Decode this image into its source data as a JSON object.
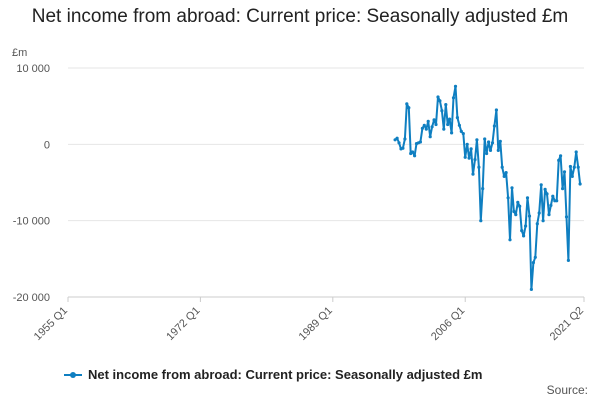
{
  "chart_data": {
    "type": "line",
    "title": "Net income from abroad: Current price: Seasonally adjusted £m",
    "unit_label": "£m",
    "ylim": [
      -20000,
      10000
    ],
    "y_ticks": [
      {
        "value": 10000,
        "label": "10 000"
      },
      {
        "value": 0,
        "label": "0"
      },
      {
        "value": -10000,
        "label": "-10 000"
      },
      {
        "value": -20000,
        "label": "-20 000"
      }
    ],
    "xlim": [
      "1955 Q1",
      "2021 Q2"
    ],
    "x_ticks": [
      "1955 Q1",
      "1972 Q1",
      "1989 Q1",
      "2006 Q1",
      "2021 Q2"
    ],
    "grid": true,
    "legend_position": "bottom-left",
    "colors": {
      "series": "#0f7fc1",
      "grid": "#e6e6e6",
      "axis": "#cccccc",
      "tick_text": "#555555"
    },
    "series": [
      {
        "name": "Net income from abroad: Current price: Seasonally adjusted £m",
        "points": [
          [
            "1997 Q1",
            600
          ],
          [
            "1997 Q2",
            800
          ],
          [
            "1997 Q3",
            200
          ],
          [
            "1997 Q4",
            -600
          ],
          [
            "1998 Q1",
            -500
          ],
          [
            "1998 Q2",
            700
          ],
          [
            "1998 Q3",
            5300
          ],
          [
            "1998 Q4",
            4800
          ],
          [
            "1999 Q1",
            -1200
          ],
          [
            "1999 Q2",
            -1000
          ],
          [
            "1999 Q3",
            -1500
          ],
          [
            "1999 Q4",
            100
          ],
          [
            "2000 Q1",
            200
          ],
          [
            "2000 Q2",
            300
          ],
          [
            "2000 Q3",
            2100
          ],
          [
            "2000 Q4",
            2500
          ],
          [
            "2001 Q1",
            2000
          ],
          [
            "2001 Q2",
            3000
          ],
          [
            "2001 Q3",
            1000
          ],
          [
            "2001 Q4",
            2300
          ],
          [
            "2002 Q1",
            3200
          ],
          [
            "2002 Q2",
            2600
          ],
          [
            "2002 Q3",
            6200
          ],
          [
            "2002 Q4",
            5700
          ],
          [
            "2003 Q1",
            4400
          ],
          [
            "2003 Q2",
            2000
          ],
          [
            "2003 Q3",
            5200
          ],
          [
            "2003 Q4",
            2600
          ],
          [
            "2004 Q1",
            3300
          ],
          [
            "2004 Q2",
            1500
          ],
          [
            "2004 Q3",
            6100
          ],
          [
            "2004 Q4",
            7600
          ],
          [
            "2005 Q1",
            3500
          ],
          [
            "2005 Q2",
            2500
          ],
          [
            "2005 Q3",
            1700
          ],
          [
            "2005 Q4",
            1400
          ],
          [
            "2006 Q1",
            -1700
          ],
          [
            "2006 Q2",
            0
          ],
          [
            "2006 Q3",
            -1800
          ],
          [
            "2006 Q4",
            -600
          ],
          [
            "2007 Q1",
            -3900
          ],
          [
            "2007 Q2",
            -2000
          ],
          [
            "2007 Q3",
            600
          ],
          [
            "2007 Q4",
            -3000
          ],
          [
            "2008 Q1",
            -10000
          ],
          [
            "2008 Q2",
            -5800
          ],
          [
            "2008 Q3",
            700
          ],
          [
            "2008 Q4",
            -1200
          ],
          [
            "2009 Q1",
            300
          ],
          [
            "2009 Q2",
            -800
          ],
          [
            "2009 Q3",
            200
          ],
          [
            "2009 Q4",
            2400
          ],
          [
            "2010 Q1",
            4500
          ],
          [
            "2010 Q2",
            -800
          ],
          [
            "2010 Q3",
            400
          ],
          [
            "2010 Q4",
            -3000
          ],
          [
            "2011 Q1",
            -4200
          ],
          [
            "2011 Q2",
            -3700
          ],
          [
            "2011 Q3",
            -7000
          ],
          [
            "2011 Q4",
            -12500
          ],
          [
            "2012 Q1",
            -5700
          ],
          [
            "2012 Q2",
            -8800
          ],
          [
            "2012 Q3",
            -9200
          ],
          [
            "2012 Q4",
            -7600
          ],
          [
            "2013 Q1",
            -8100
          ],
          [
            "2013 Q2",
            -11300
          ],
          [
            "2013 Q3",
            -12000
          ],
          [
            "2013 Q4",
            -10700
          ],
          [
            "2014 Q1",
            -7000
          ],
          [
            "2014 Q2",
            -9400
          ],
          [
            "2014 Q3",
            -19000
          ],
          [
            "2014 Q4",
            -15500
          ],
          [
            "2015 Q1",
            -14800
          ],
          [
            "2015 Q2",
            -10400
          ],
          [
            "2015 Q3",
            -9000
          ],
          [
            "2015 Q4",
            -5300
          ],
          [
            "2016 Q1",
            -10000
          ],
          [
            "2016 Q2",
            -5900
          ],
          [
            "2016 Q3",
            -6500
          ],
          [
            "2016 Q4",
            -9200
          ],
          [
            "2017 Q1",
            -8000
          ],
          [
            "2017 Q2",
            -6800
          ],
          [
            "2017 Q3",
            -7400
          ],
          [
            "2017 Q4",
            -7400
          ],
          [
            "2018 Q1",
            -2100
          ],
          [
            "2018 Q2",
            -1500
          ],
          [
            "2018 Q3",
            -5800
          ],
          [
            "2018 Q4",
            -3600
          ],
          [
            "2019 Q1",
            -9500
          ],
          [
            "2019 Q2",
            -15200
          ],
          [
            "2019 Q3",
            -2900
          ],
          [
            "2019 Q4",
            -4200
          ],
          [
            "2020 Q1",
            -3000
          ],
          [
            "2020 Q2",
            -1000
          ],
          [
            "2020 Q3",
            -3000
          ],
          [
            "2020 Q4",
            -5200
          ]
        ]
      }
    ]
  },
  "legend": {
    "label": "Net income from abroad: Current price: Seasonally adjusted £m"
  },
  "footer": {
    "source_label": "Source:"
  }
}
